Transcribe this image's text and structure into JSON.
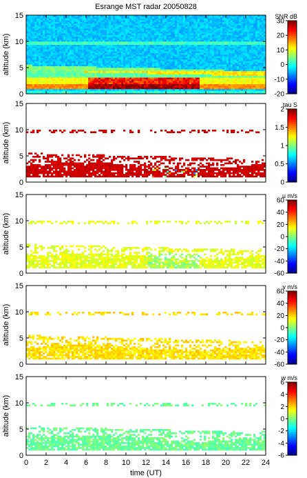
{
  "chart_data": [
    {
      "type": "heatmap",
      "title": "Esrange MST radar 20050828",
      "ylabel": "altitude (km)",
      "xlabel": "",
      "ylim": [
        0,
        15
      ],
      "yticks": [
        "0",
        "5",
        "10",
        "15"
      ],
      "xlim": [
        0,
        24
      ],
      "colorbar": {
        "label": "SNR dB",
        "range": [
          -20,
          30
        ],
        "ticks": [
          "-20",
          "-10",
          "0",
          "10",
          "20",
          "30"
        ]
      },
      "description_values": {
        "max_snr_region_altitude_km": [
          1,
          3
        ],
        "noise_floor_dB": -5
      }
    },
    {
      "type": "heatmap",
      "title": "",
      "ylabel": "altitude (km)",
      "xlabel": "",
      "ylim": [
        0,
        15
      ],
      "yticks": [
        "0",
        "5",
        "10",
        "15"
      ],
      "xlim": [
        0,
        24
      ],
      "colorbar": {
        "label": "tau S",
        "range": [
          0,
          2
        ],
        "ticks": [
          "0",
          "0.5",
          "1",
          "1.5",
          "2"
        ]
      }
    },
    {
      "type": "heatmap",
      "title": "",
      "ylabel": "altitude (km)",
      "xlabel": "",
      "ylim": [
        0,
        15
      ],
      "yticks": [
        "0",
        "5",
        "10",
        "15"
      ],
      "xlim": [
        0,
        24
      ],
      "colorbar": {
        "label": "u m/s",
        "range": [
          -60,
          60
        ],
        "ticks": [
          "-60",
          "-40",
          "-20",
          "0",
          "20",
          "40",
          "60"
        ]
      }
    },
    {
      "type": "heatmap",
      "title": "",
      "ylabel": "altitude (km)",
      "xlabel": "",
      "ylim": [
        0,
        15
      ],
      "yticks": [
        "0",
        "5",
        "10",
        "15"
      ],
      "xlim": [
        0,
        24
      ],
      "colorbar": {
        "label": "v m/s",
        "range": [
          -60,
          60
        ],
        "ticks": [
          "-60",
          "-40",
          "-20",
          "0",
          "20",
          "40",
          "60"
        ]
      }
    },
    {
      "type": "heatmap",
      "title": "",
      "ylabel": "altitude (km)",
      "xlabel": "time (UT)",
      "ylim": [
        0,
        15
      ],
      "yticks": [
        "0",
        "5",
        "10",
        "15"
      ],
      "xlim": [
        0,
        24
      ],
      "xticks": [
        "0",
        "2",
        "4",
        "6",
        "8",
        "10",
        "12",
        "14",
        "16",
        "18",
        "20",
        "22",
        "24"
      ],
      "colorbar": {
        "label": "w m/s",
        "range": [
          -6,
          6
        ],
        "ticks": [
          "-6",
          "-4",
          "-2",
          "0",
          "2",
          "4",
          "6"
        ]
      }
    }
  ]
}
